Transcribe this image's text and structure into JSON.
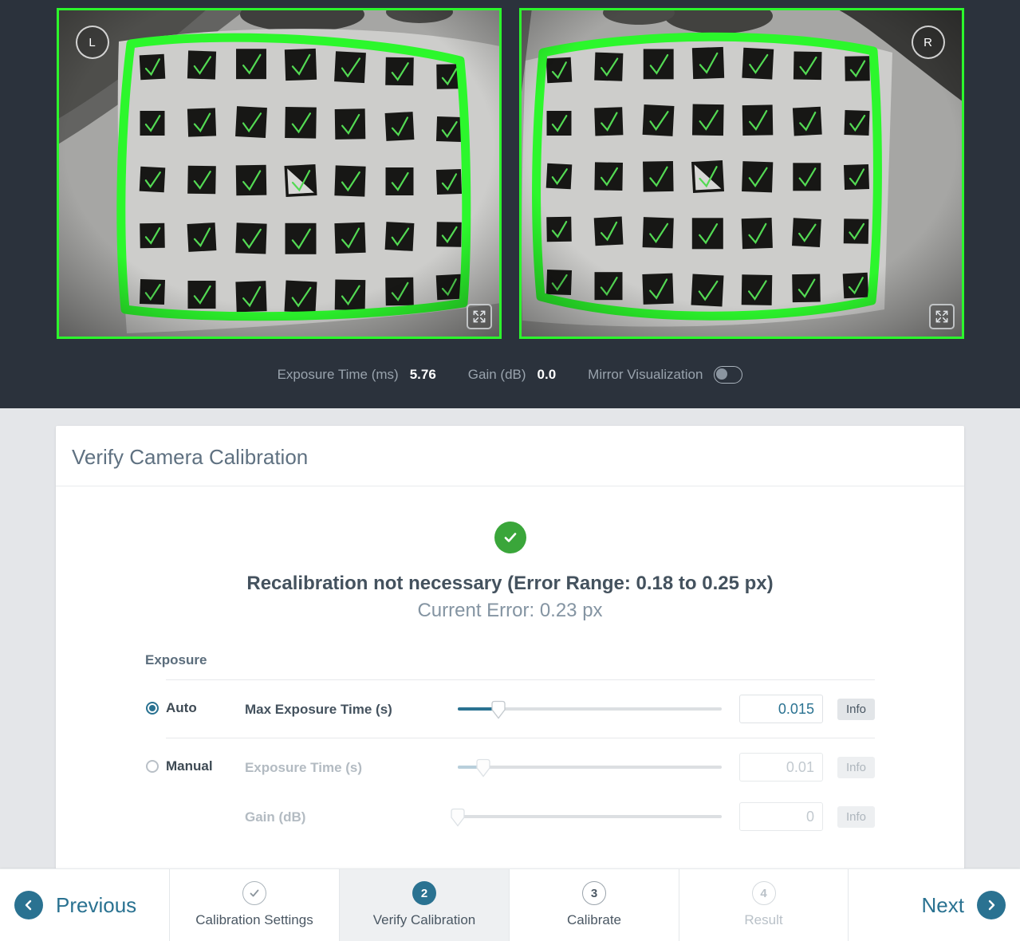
{
  "cameras": {
    "left_label": "L",
    "right_label": "R",
    "grid": {
      "rows": 5,
      "cols": 7,
      "marker_row": 2,
      "marker_col": 3
    }
  },
  "status_bar": {
    "exposure_time_label": "Exposure Time (ms)",
    "exposure_time_value": "5.76",
    "gain_label": "Gain (dB)",
    "gain_value": "0.0",
    "mirror_label": "Mirror Visualization",
    "mirror_on": false
  },
  "card": {
    "title": "Verify Camera Calibration",
    "result_heading": "Recalibration not necessary (Error Range: 0.18 to 0.25 px)",
    "result_subheading": "Current Error: 0.23 px"
  },
  "exposure": {
    "section_label": "Exposure",
    "modes": [
      {
        "label": "Auto",
        "selected": true
      },
      {
        "label": "Manual",
        "selected": false
      }
    ],
    "controls": [
      {
        "label": "Max Exposure Time (s)",
        "value": "0.015",
        "info": "Info",
        "slider_pos": 0.155,
        "enabled": true
      },
      {
        "label": "Exposure Time (s)",
        "value": "0.01",
        "info": "Info",
        "slider_pos": 0.097,
        "enabled": false
      },
      {
        "label": "Gain (dB)",
        "value": "0",
        "info": "Info",
        "slider_pos": 0.0,
        "enabled": false
      }
    ]
  },
  "wizard": {
    "previous_label": "Previous",
    "next_label": "Next",
    "steps": [
      {
        "label": "Calibration Settings",
        "state": "done"
      },
      {
        "label": "Verify Calibration",
        "state": "active",
        "number": "2"
      },
      {
        "label": "Calibrate",
        "state": "todo",
        "number": "3"
      },
      {
        "label": "Result",
        "state": "disabled",
        "number": "4"
      }
    ]
  },
  "colors": {
    "accent_teal": "#2a7291",
    "success_green": "#3aa63a",
    "overlay_green": "#2cf72c",
    "check_green": "#53da53",
    "dark_background": "#2b323c"
  }
}
